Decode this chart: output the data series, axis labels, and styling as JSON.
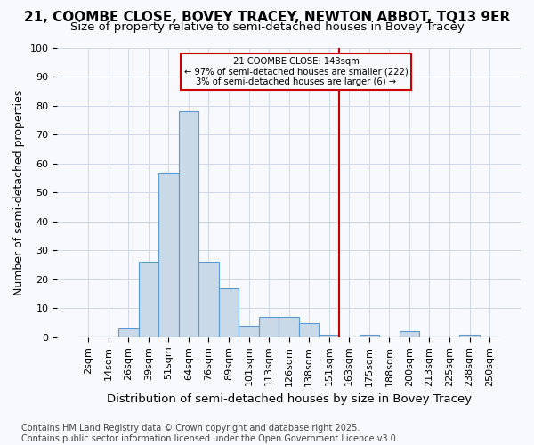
{
  "title": "21, COOMBE CLOSE, BOVEY TRACEY, NEWTON ABBOT, TQ13 9ER",
  "subtitle": "Size of property relative to semi-detached houses in Bovey Tracey",
  "xlabel": "Distribution of semi-detached houses by size in Bovey Tracey",
  "ylabel": "Number of semi-detached properties",
  "bin_labels": [
    "2sqm",
    "14sqm",
    "26sqm",
    "39sqm",
    "51sqm",
    "64sqm",
    "76sqm",
    "89sqm",
    "101sqm",
    "113sqm",
    "126sqm",
    "138sqm",
    "151sqm",
    "163sqm",
    "175sqm",
    "188sqm",
    "200sqm",
    "213sqm",
    "225sqm",
    "238sqm",
    "250sqm"
  ],
  "bar_values": [
    0,
    0,
    3,
    26,
    57,
    78,
    26,
    17,
    4,
    7,
    7,
    5,
    1,
    0,
    1,
    0,
    2,
    0,
    0,
    1,
    0
  ],
  "bar_color": "#c9d9e8",
  "bar_edge_color": "#5b9bd5",
  "vline_x_index": 12.5,
  "vline_color": "#cc0000",
  "annotation_title": "21 COOMBE CLOSE: 143sqm",
  "annotation_line1": "← 97% of semi-detached houses are smaller (222)",
  "annotation_line2": "3% of semi-detached houses are larger (6) →",
  "annotation_box_color": "#cc0000",
  "ylim": [
    0,
    100
  ],
  "yticks": [
    0,
    10,
    20,
    30,
    40,
    50,
    60,
    70,
    80,
    90,
    100
  ],
  "footnote": "Contains HM Land Registry data © Crown copyright and database right 2025.\nContains public sector information licensed under the Open Government Licence v3.0.",
  "background_color": "#f7f9fc",
  "grid_color": "#d0d8e8",
  "title_fontsize": 11,
  "subtitle_fontsize": 9.5,
  "xlabel_fontsize": 9.5,
  "ylabel_fontsize": 9,
  "tick_fontsize": 8,
  "footnote_fontsize": 7
}
